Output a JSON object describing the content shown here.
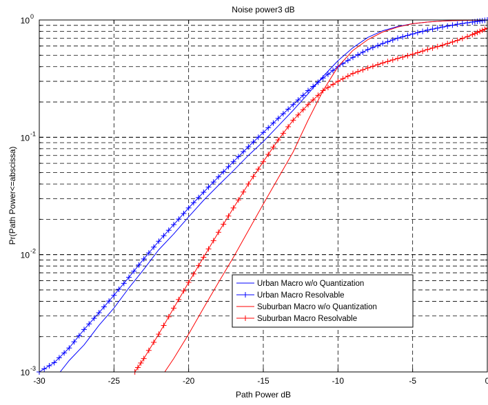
{
  "chart_data": {
    "type": "line",
    "title": "Noise power3 dB",
    "xlabel": "Path Power dB",
    "ylabel": "Pr(Path Power<=abscissa)",
    "xlim": [
      -30,
      0
    ],
    "ylim": [
      0.001,
      1
    ],
    "yscale": "log",
    "grid": true,
    "legend_position": "lower-right",
    "xticks": [
      -30,
      -25,
      -20,
      -15,
      -10,
      -5,
      0
    ],
    "xtick_labels": [
      "-30",
      "-25",
      "-20",
      "-15",
      "-10",
      "-5",
      "0"
    ],
    "yticks": [
      0.001,
      0.01,
      0.1,
      1
    ],
    "ytick_labels": [
      {
        "base": "10",
        "exp": "-3"
      },
      {
        "base": "10",
        "exp": "-2"
      },
      {
        "base": "10",
        "exp": "-1"
      },
      {
        "base": "10",
        "exp": "0"
      }
    ],
    "series": [
      {
        "name": "Urban Macro w/o Quantization",
        "color": "#0000ff",
        "marker": "none",
        "x": [
          -28.6,
          -28,
          -27,
          -26,
          -25,
          -24,
          -23,
          -22,
          -21,
          -20,
          -19,
          -18,
          -17,
          -16,
          -15,
          -14,
          -13,
          -12,
          -11,
          -10,
          -9,
          -8,
          -7,
          -6,
          -5,
          -4,
          -3,
          -2,
          -1,
          0
        ],
        "y": [
          0.001,
          0.00125,
          0.0017,
          0.0025,
          0.0035,
          0.0052,
          0.0075,
          0.011,
          0.015,
          0.021,
          0.029,
          0.039,
          0.052,
          0.07,
          0.092,
          0.125,
          0.17,
          0.235,
          0.33,
          0.45,
          0.58,
          0.71,
          0.81,
          0.88,
          0.93,
          0.96,
          0.98,
          0.99,
          0.995,
          1.0
        ]
      },
      {
        "name": "Urban Macro Resolvable",
        "color": "#0000ff",
        "marker": "plus",
        "x": [
          -30,
          -29,
          -28,
          -27,
          -26,
          -25,
          -24,
          -23,
          -22,
          -21,
          -20,
          -19,
          -18,
          -17,
          -16,
          -15,
          -14,
          -13,
          -12,
          -11,
          -10,
          -9,
          -8,
          -7,
          -6,
          -5,
          -4,
          -3,
          -2,
          -1,
          -0.5,
          0
        ],
        "y": [
          0.001,
          0.0012,
          0.0016,
          0.0023,
          0.0032,
          0.0045,
          0.0064,
          0.0092,
          0.013,
          0.018,
          0.025,
          0.034,
          0.046,
          0.062,
          0.083,
          0.11,
          0.145,
          0.19,
          0.25,
          0.32,
          0.4,
          0.48,
          0.56,
          0.63,
          0.7,
          0.76,
          0.82,
          0.87,
          0.92,
          0.96,
          0.98,
          1.0
        ]
      },
      {
        "name": "Suburban Macro w/o Quantization",
        "color": "#ff0000",
        "marker": "none",
        "x": [
          -21.6,
          -21,
          -20,
          -19,
          -18,
          -17,
          -16,
          -15,
          -14,
          -13,
          -12,
          -11,
          -10,
          -9,
          -8,
          -7,
          -6,
          -5,
          -4,
          -3,
          -2,
          -1,
          0
        ],
        "y": [
          0.001,
          0.0013,
          0.0021,
          0.0035,
          0.0058,
          0.0095,
          0.016,
          0.027,
          0.045,
          0.075,
          0.14,
          0.25,
          0.4,
          0.55,
          0.68,
          0.79,
          0.87,
          0.93,
          0.96,
          0.98,
          0.99,
          0.995,
          1.0
        ]
      },
      {
        "name": "Suburban Macro Resolvable",
        "color": "#ff0000",
        "marker": "plus",
        "x": [
          -23.6,
          -23,
          -22,
          -21,
          -20,
          -19,
          -18,
          -17,
          -16,
          -15,
          -14,
          -13,
          -12,
          -11,
          -10,
          -9,
          -8,
          -7,
          -6,
          -5,
          -4,
          -3,
          -2,
          -1,
          -0.5,
          0
        ],
        "y": [
          0.001,
          0.0013,
          0.0021,
          0.0035,
          0.0058,
          0.0095,
          0.0155,
          0.025,
          0.04,
          0.062,
          0.095,
          0.14,
          0.19,
          0.25,
          0.3,
          0.35,
          0.39,
          0.43,
          0.47,
          0.51,
          0.56,
          0.61,
          0.67,
          0.75,
          0.8,
          0.85
        ]
      }
    ]
  }
}
